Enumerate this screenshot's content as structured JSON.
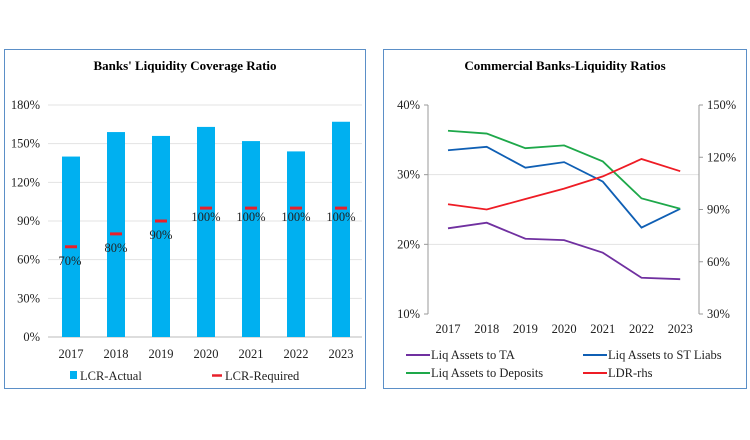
{
  "chart_data": [
    {
      "type": "bar",
      "title": "Banks' Liquidity Coverage Ratio",
      "categories": [
        "2017",
        "2018",
        "2019",
        "2020",
        "2021",
        "2022",
        "2023"
      ],
      "ylim": [
        0,
        180
      ],
      "yticks": [
        "0%",
        "30%",
        "60%",
        "90%",
        "120%",
        "150%",
        "180%"
      ],
      "grid": true,
      "legend_position": "bottom",
      "series": [
        {
          "name": "LCR-Actual",
          "kind": "bar",
          "color": "#00b0f0",
          "values": [
            140,
            159,
            156,
            163,
            152,
            144,
            167
          ]
        },
        {
          "name": "LCR-Required",
          "kind": "marker",
          "color": "#e8202a",
          "values": [
            70,
            80,
            90,
            100,
            100,
            100,
            100
          ],
          "labels": [
            "70%",
            "80%",
            "90%",
            "100%",
            "100%",
            "100%",
            "100%"
          ]
        }
      ]
    },
    {
      "type": "line",
      "title": "Commercial Banks-Liquidity Ratios",
      "categories": [
        "2017",
        "2018",
        "2019",
        "2020",
        "2021",
        "2022",
        "2023"
      ],
      "ylim": [
        10,
        40
      ],
      "yticks": [
        "10%",
        "20%",
        "30%",
        "40%"
      ],
      "y2lim": [
        30,
        150
      ],
      "y2ticks": [
        "30%",
        "60%",
        "90%",
        "120%",
        "150%"
      ],
      "grid": true,
      "legend_position": "bottom",
      "series": [
        {
          "name": "Liq Assets to TA",
          "axis": "left",
          "color": "#7030a0",
          "values": [
            22.3,
            23.1,
            20.8,
            20.6,
            18.8,
            15.2,
            15.0
          ]
        },
        {
          "name": "Liq Assets to ST Liabs",
          "axis": "left",
          "color": "#0f5fb4",
          "values": [
            33.5,
            34.0,
            31.0,
            31.8,
            29.0,
            22.4,
            25.1
          ]
        },
        {
          "name": "Liq Assets to Deposits",
          "axis": "left",
          "color": "#1ea84a",
          "values": [
            36.3,
            35.9,
            33.8,
            34.2,
            31.9,
            26.6,
            25.1
          ]
        },
        {
          "name": "LDR-rhs",
          "axis": "right",
          "color": "#ee1c25",
          "values": [
            93,
            90,
            96,
            102,
            109,
            119,
            112
          ]
        }
      ]
    }
  ]
}
